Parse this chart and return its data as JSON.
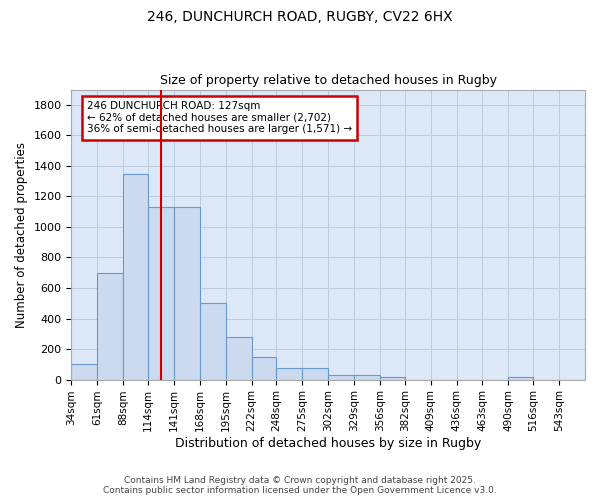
{
  "title1": "246, DUNCHURCH ROAD, RUGBY, CV22 6HX",
  "title2": "Size of property relative to detached houses in Rugby",
  "xlabel": "Distribution of detached houses by size in Rugby",
  "ylabel": "Number of detached properties",
  "bin_edges": [
    34,
    61,
    88,
    114,
    141,
    168,
    195,
    222,
    248,
    275,
    302,
    329,
    356,
    382,
    409,
    436,
    463,
    490,
    516,
    543,
    570
  ],
  "bar_heights": [
    100,
    700,
    1350,
    1130,
    1130,
    500,
    280,
    145,
    75,
    75,
    30,
    30,
    15,
    0,
    0,
    0,
    0,
    15,
    0,
    0
  ],
  "bar_color": "#ccdaf0",
  "bar_edge_color": "#6699cc",
  "vline_x": 127,
  "vline_color": "#cc0000",
  "ylim": [
    0,
    1900
  ],
  "yticks": [
    0,
    200,
    400,
    600,
    800,
    1000,
    1200,
    1400,
    1600,
    1800
  ],
  "annotation_title": "246 DUNCHURCH ROAD: 127sqm",
  "annotation_line1": "← 62% of detached houses are smaller (2,702)",
  "annotation_line2": "36% of semi-detached houses are larger (1,571) →",
  "annotation_box_color": "#ffffff",
  "annotation_box_edge_color": "#cc0000",
  "grid_color": "#bbccdd",
  "bg_color": "#dce8f8",
  "fig_bg_color": "#ffffff",
  "footer1": "Contains HM Land Registry data © Crown copyright and database right 2025.",
  "footer2": "Contains public sector information licensed under the Open Government Licence v3.0."
}
